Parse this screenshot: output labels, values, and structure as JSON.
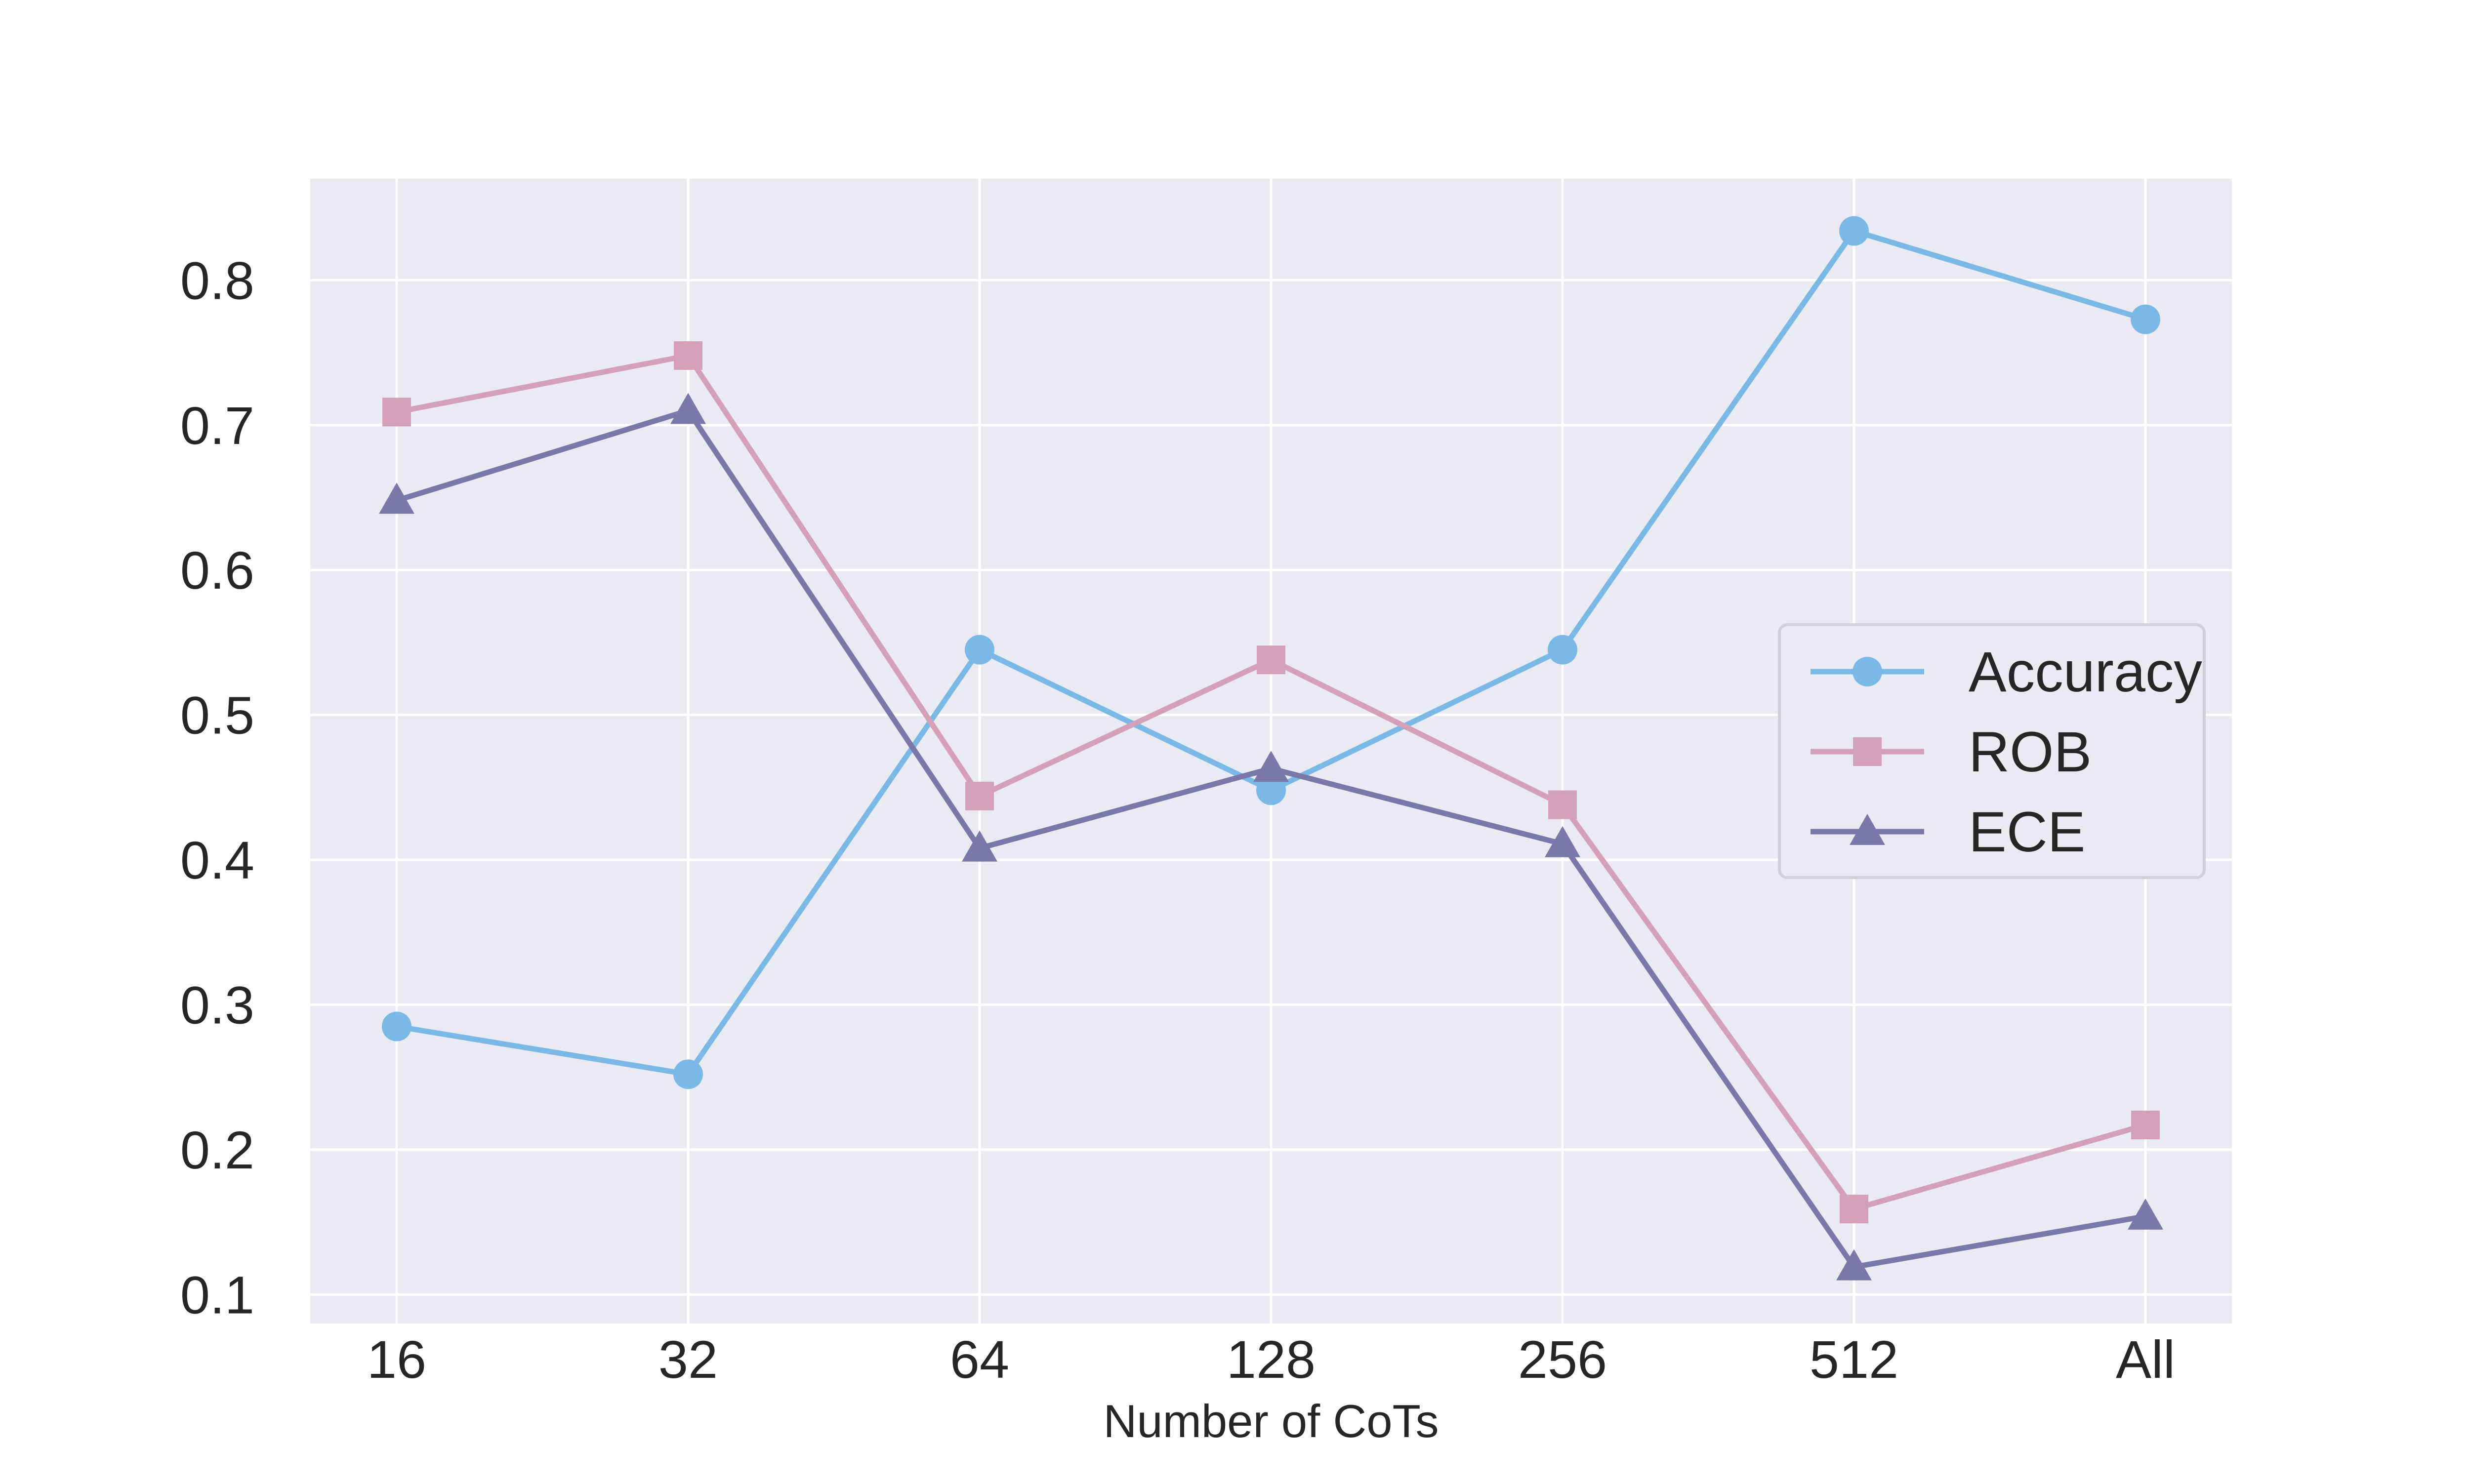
{
  "chart_data": {
    "type": "line",
    "title": "",
    "xlabel": "Number of CoTs",
    "ylabel": "",
    "categories": [
      "16",
      "32",
      "64",
      "128",
      "256",
      "512",
      "All"
    ],
    "ylim": [
      0.08,
      0.87
    ],
    "yticks": [
      0.1,
      0.2,
      0.3,
      0.4,
      0.5,
      0.6,
      0.7,
      0.8
    ],
    "grid": true,
    "legend_position": "center-right",
    "series": [
      {
        "name": "Accuracy",
        "marker": "circle",
        "color": "#7ab8e6",
        "values": [
          0.285,
          0.252,
          0.545,
          0.448,
          0.545,
          0.834,
          0.773
        ]
      },
      {
        "name": "ROB",
        "marker": "square",
        "color": "#d4a0b7",
        "values": [
          0.709,
          0.748,
          0.444,
          0.538,
          0.438,
          0.159,
          0.217
        ]
      },
      {
        "name": "ECE",
        "marker": "triangle",
        "color": "#7b77a8",
        "values": [
          0.648,
          0.71,
          0.408,
          0.463,
          0.411,
          0.119,
          0.154
        ]
      }
    ]
  }
}
